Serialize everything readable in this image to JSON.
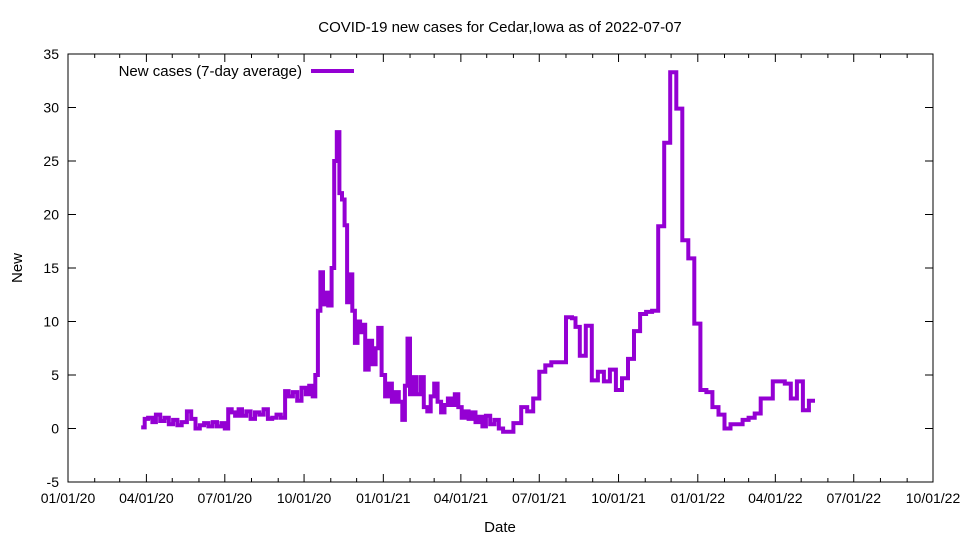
{
  "chart_data": {
    "type": "line",
    "title": "COVID-19 new cases for Cedar,Iowa as of 2022-07-07",
    "xlabel": "Date",
    "ylabel": "New",
    "xlim": [
      "2020-01-01",
      "2022-10-01"
    ],
    "ylim": [
      -5,
      35
    ],
    "grid": false,
    "legend_position": "top-left",
    "x_ticks": [
      {
        "date": "2020-01-01",
        "label": "01/01/20"
      },
      {
        "date": "2020-04-01",
        "label": "04/01/20"
      },
      {
        "date": "2020-07-01",
        "label": "07/01/20"
      },
      {
        "date": "2020-10-01",
        "label": "10/01/20"
      },
      {
        "date": "2021-01-01",
        "label": "01/01/21"
      },
      {
        "date": "2021-04-01",
        "label": "04/01/21"
      },
      {
        "date": "2021-07-01",
        "label": "07/01/21"
      },
      {
        "date": "2021-10-01",
        "label": "10/01/21"
      },
      {
        "date": "2022-01-01",
        "label": "01/01/22"
      },
      {
        "date": "2022-04-01",
        "label": "04/01/22"
      },
      {
        "date": "2022-07-01",
        "label": "07/01/22"
      },
      {
        "date": "2022-10-01",
        "label": "10/01/22"
      }
    ],
    "y_ticks": [
      -5,
      0,
      5,
      10,
      15,
      20,
      25,
      30,
      35
    ],
    "series": [
      {
        "name": "New cases (7-day average)",
        "color": "#9400d3",
        "step": true,
        "points": [
          [
            "2020-03-26",
            0.1
          ],
          [
            "2020-03-30",
            0.9
          ],
          [
            "2020-04-03",
            1.0
          ],
          [
            "2020-04-08",
            0.6
          ],
          [
            "2020-04-12",
            1.3
          ],
          [
            "2020-04-17",
            0.7
          ],
          [
            "2020-04-22",
            1.0
          ],
          [
            "2020-04-27",
            0.4
          ],
          [
            "2020-05-02",
            0.8
          ],
          [
            "2020-05-07",
            0.3
          ],
          [
            "2020-05-12",
            0.6
          ],
          [
            "2020-05-18",
            1.6
          ],
          [
            "2020-05-23",
            0.9
          ],
          [
            "2020-05-28",
            0.0
          ],
          [
            "2020-06-02",
            0.3
          ],
          [
            "2020-06-07",
            0.5
          ],
          [
            "2020-06-12",
            0.2
          ],
          [
            "2020-06-17",
            0.6
          ],
          [
            "2020-06-22",
            0.2
          ],
          [
            "2020-06-27",
            0.5
          ],
          [
            "2020-07-01",
            0.0
          ],
          [
            "2020-07-05",
            1.8
          ],
          [
            "2020-07-09",
            1.5
          ],
          [
            "2020-07-13",
            1.2
          ],
          [
            "2020-07-17",
            1.8
          ],
          [
            "2020-07-21",
            1.2
          ],
          [
            "2020-07-26",
            1.6
          ],
          [
            "2020-07-31",
            0.9
          ],
          [
            "2020-08-05",
            1.5
          ],
          [
            "2020-08-10",
            1.3
          ],
          [
            "2020-08-15",
            1.8
          ],
          [
            "2020-08-20",
            0.9
          ],
          [
            "2020-08-25",
            1.0
          ],
          [
            "2020-08-30",
            1.3
          ],
          [
            "2020-09-04",
            1.0
          ],
          [
            "2020-09-09",
            3.5
          ],
          [
            "2020-09-13",
            3.0
          ],
          [
            "2020-09-18",
            3.4
          ],
          [
            "2020-09-23",
            2.6
          ],
          [
            "2020-09-28",
            3.8
          ],
          [
            "2020-10-03",
            3.2
          ],
          [
            "2020-10-07",
            4.0
          ],
          [
            "2020-10-11",
            3.0
          ],
          [
            "2020-10-14",
            5.0
          ],
          [
            "2020-10-17",
            11.0
          ],
          [
            "2020-10-20",
            14.6
          ],
          [
            "2020-10-23",
            11.6
          ],
          [
            "2020-10-26",
            12.7
          ],
          [
            "2020-10-29",
            11.5
          ],
          [
            "2020-11-02",
            15.0
          ],
          [
            "2020-11-05",
            25.0
          ],
          [
            "2020-11-08",
            27.7
          ],
          [
            "2020-11-11",
            22.0
          ],
          [
            "2020-11-14",
            21.4
          ],
          [
            "2020-11-17",
            19.0
          ],
          [
            "2020-11-20",
            11.8
          ],
          [
            "2020-11-23",
            14.4
          ],
          [
            "2020-11-26",
            11.0
          ],
          [
            "2020-11-29",
            8.0
          ],
          [
            "2020-12-02",
            10.0
          ],
          [
            "2020-12-05",
            9.0
          ],
          [
            "2020-12-08",
            9.7
          ],
          [
            "2020-12-11",
            5.5
          ],
          [
            "2020-12-15",
            8.2
          ],
          [
            "2020-12-19",
            6.0
          ],
          [
            "2020-12-23",
            7.5
          ],
          [
            "2020-12-26",
            9.4
          ],
          [
            "2020-12-30",
            5.0
          ],
          [
            "2021-01-03",
            3.0
          ],
          [
            "2021-01-07",
            4.2
          ],
          [
            "2021-01-11",
            2.5
          ],
          [
            "2021-01-15",
            3.4
          ],
          [
            "2021-01-19",
            2.5
          ],
          [
            "2021-01-23",
            0.8
          ],
          [
            "2021-01-26",
            4.0
          ],
          [
            "2021-01-29",
            8.4
          ],
          [
            "2021-02-01",
            3.2
          ],
          [
            "2021-02-04",
            4.8
          ],
          [
            "2021-02-08",
            3.2
          ],
          [
            "2021-02-13",
            4.8
          ],
          [
            "2021-02-17",
            2.0
          ],
          [
            "2021-02-21",
            1.6
          ],
          [
            "2021-02-25",
            3.0
          ],
          [
            "2021-03-01",
            4.2
          ],
          [
            "2021-03-05",
            2.5
          ],
          [
            "2021-03-09",
            1.5
          ],
          [
            "2021-03-13",
            2.2
          ],
          [
            "2021-03-17",
            2.8
          ],
          [
            "2021-03-21",
            2.2
          ],
          [
            "2021-03-25",
            3.2
          ],
          [
            "2021-03-29",
            2.0
          ],
          [
            "2021-04-02",
            1.0
          ],
          [
            "2021-04-06",
            1.6
          ],
          [
            "2021-04-10",
            0.9
          ],
          [
            "2021-04-14",
            1.5
          ],
          [
            "2021-04-18",
            0.6
          ],
          [
            "2021-04-22",
            1.1
          ],
          [
            "2021-04-26",
            0.2
          ],
          [
            "2021-04-30",
            1.2
          ],
          [
            "2021-05-05",
            0.4
          ],
          [
            "2021-05-10",
            0.8
          ],
          [
            "2021-05-15",
            0.0
          ],
          [
            "2021-05-20",
            -0.3
          ],
          [
            "2021-06-01",
            0.5
          ],
          [
            "2021-06-10",
            2.0
          ],
          [
            "2021-06-17",
            1.6
          ],
          [
            "2021-06-24",
            2.8
          ],
          [
            "2021-07-01",
            5.3
          ],
          [
            "2021-07-08",
            5.9
          ],
          [
            "2021-07-15",
            6.2
          ],
          [
            "2021-07-22",
            6.2
          ],
          [
            "2021-08-01",
            10.4
          ],
          [
            "2021-08-08",
            10.3
          ],
          [
            "2021-08-12",
            9.5
          ],
          [
            "2021-08-17",
            6.8
          ],
          [
            "2021-08-24",
            9.6
          ],
          [
            "2021-08-31",
            4.5
          ],
          [
            "2021-09-07",
            5.3
          ],
          [
            "2021-09-14",
            4.4
          ],
          [
            "2021-09-21",
            5.5
          ],
          [
            "2021-09-28",
            3.6
          ],
          [
            "2021-10-05",
            4.7
          ],
          [
            "2021-10-12",
            6.5
          ],
          [
            "2021-10-19",
            9.1
          ],
          [
            "2021-10-26",
            10.7
          ],
          [
            "2021-11-02",
            10.9
          ],
          [
            "2021-11-09",
            11.0
          ],
          [
            "2021-11-16",
            18.9
          ],
          [
            "2021-11-23",
            26.7
          ],
          [
            "2021-11-30",
            33.3
          ],
          [
            "2021-12-07",
            29.9
          ],
          [
            "2021-12-14",
            17.6
          ],
          [
            "2021-12-21",
            15.9
          ],
          [
            "2021-12-28",
            9.8
          ],
          [
            "2022-01-04",
            3.6
          ],
          [
            "2022-01-11",
            3.4
          ],
          [
            "2022-01-18",
            2.0
          ],
          [
            "2022-01-25",
            1.3
          ],
          [
            "2022-02-01",
            0.0
          ],
          [
            "2022-02-08",
            0.4
          ],
          [
            "2022-02-22",
            0.8
          ],
          [
            "2022-03-01",
            1.0
          ],
          [
            "2022-03-08",
            1.4
          ],
          [
            "2022-03-15",
            2.8
          ],
          [
            "2022-03-29",
            4.4
          ],
          [
            "2022-04-12",
            4.2
          ],
          [
            "2022-04-19",
            2.8
          ],
          [
            "2022-04-26",
            4.4
          ],
          [
            "2022-05-03",
            1.7
          ],
          [
            "2022-05-10",
            2.6
          ],
          [
            "2022-05-17",
            2.6
          ]
        ]
      }
    ]
  }
}
